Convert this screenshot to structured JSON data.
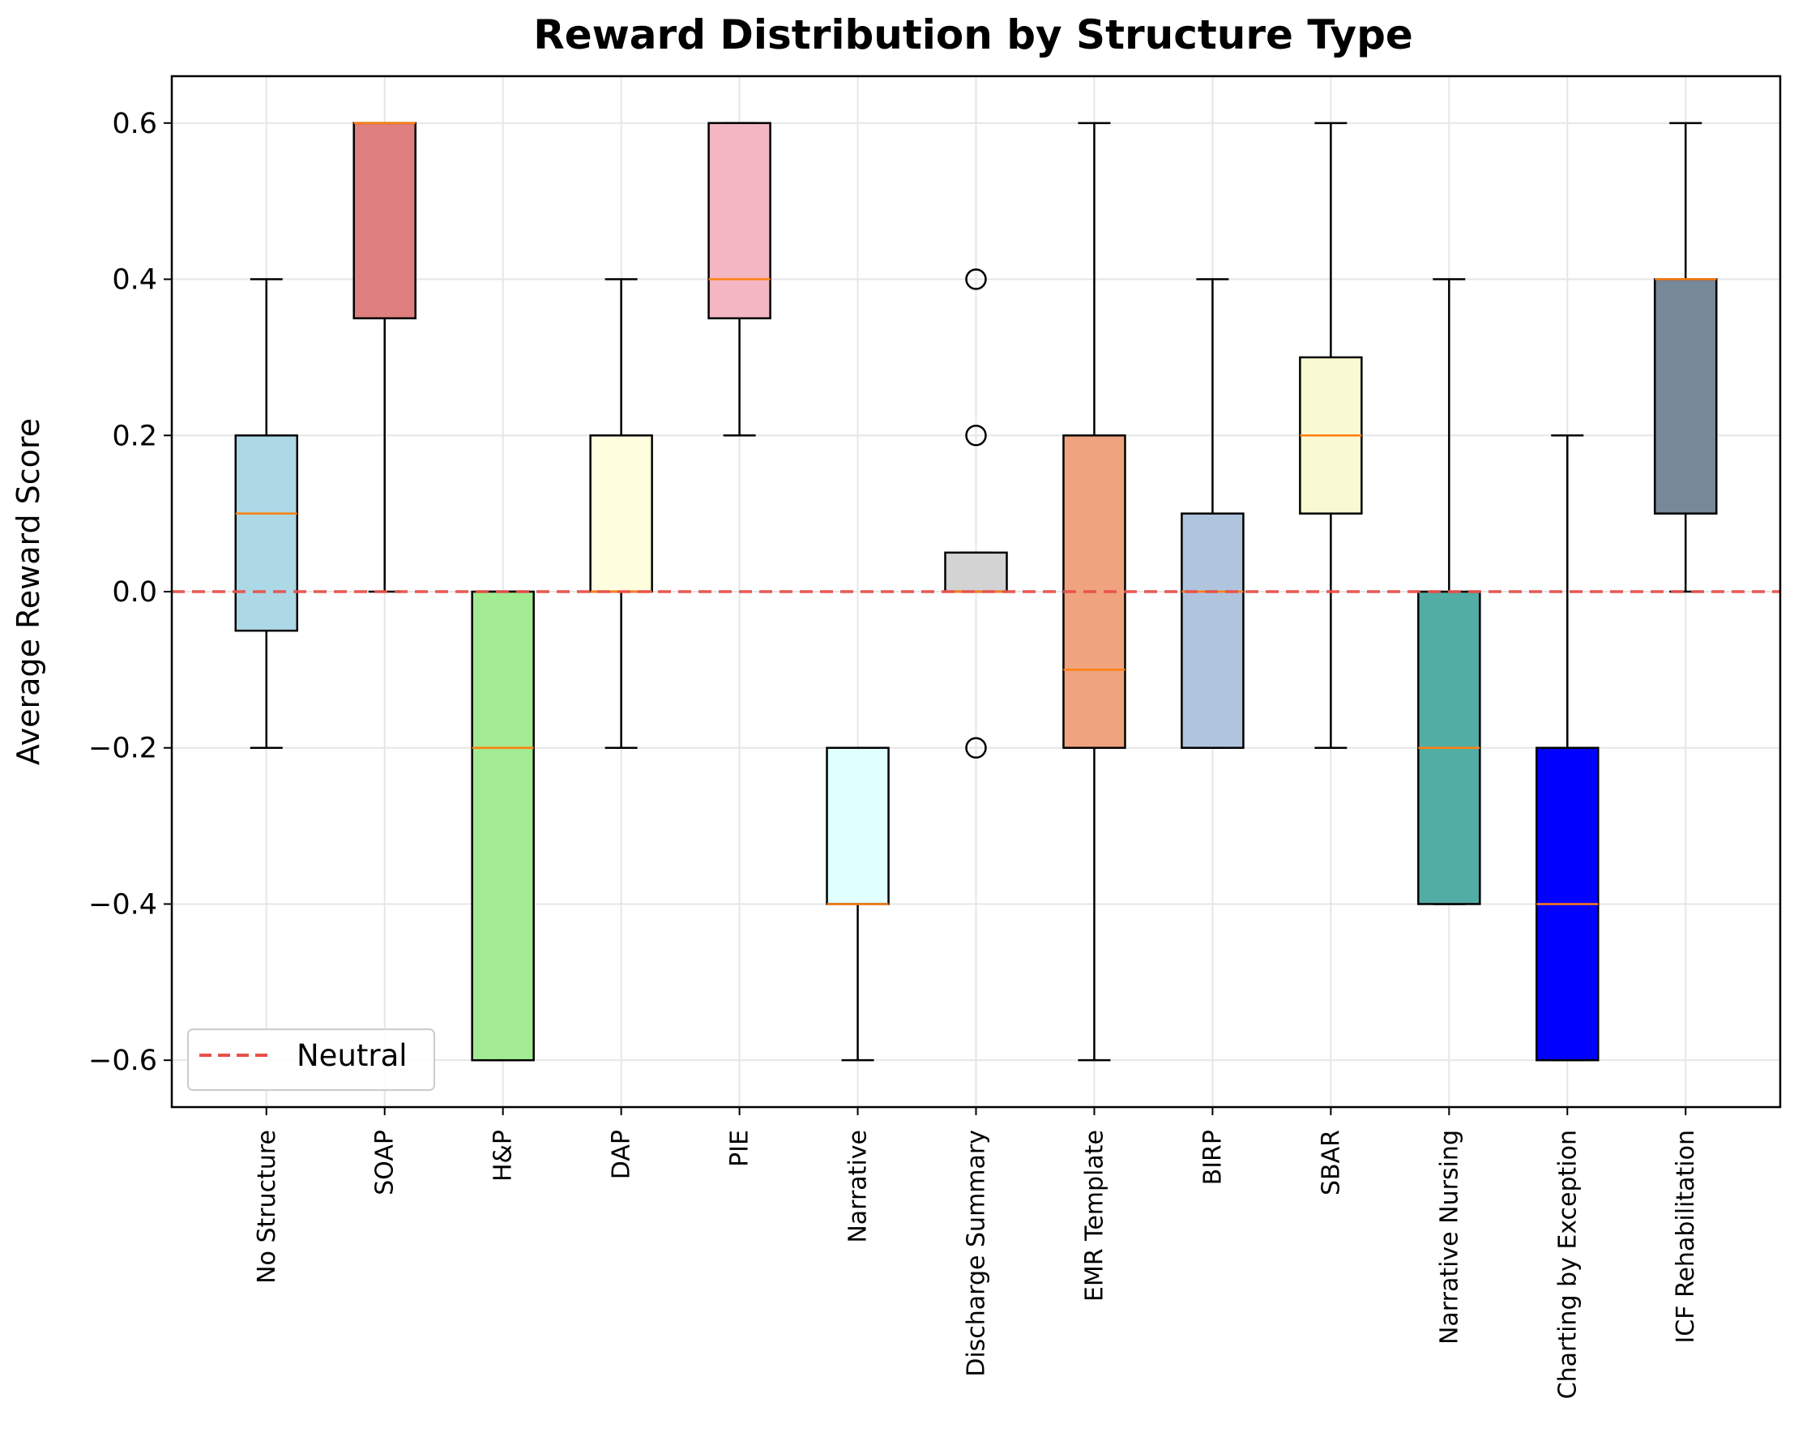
{
  "chart_data": {
    "type": "box",
    "title": "Reward Distribution by Structure Type",
    "xlabel": "",
    "ylabel": "Average Reward Score",
    "ylim": [
      -0.66,
      0.66
    ],
    "yticks": [
      -0.6,
      -0.4,
      -0.2,
      0.0,
      0.2,
      0.4,
      0.6
    ],
    "ytick_labels": [
      "−0.6",
      "−0.4",
      "−0.2",
      "0.0",
      "0.2",
      "0.4",
      "0.6"
    ],
    "grid": true,
    "legend": {
      "placement": "lower-left",
      "entries": [
        {
          "label": "Neutral",
          "style": "dashed",
          "color": "#e8504a"
        }
      ]
    },
    "reference_line": {
      "y": 0.0,
      "label": "Neutral",
      "color": "#e8504a",
      "style": "dashed"
    },
    "median_color": "#ff7f0e",
    "categories": [
      "No Structure",
      "SOAP",
      "H&P",
      "DAP",
      "PIE",
      "Narrative",
      "Discharge Summary",
      "EMR Template",
      "BIRP",
      "SBAR",
      "Narrative Nursing",
      "Charting by Exception",
      "ICF Rehabilitation"
    ],
    "boxes": [
      {
        "name": "No Structure",
        "whisker_low": -0.2,
        "q1": -0.05,
        "median": 0.1,
        "q3": 0.2,
        "whisker_high": 0.4,
        "fliers": [],
        "color": "#add8e6"
      },
      {
        "name": "SOAP",
        "whisker_low": 0.0,
        "q1": 0.35,
        "median": 0.6,
        "q3": 0.6,
        "whisker_high": 0.6,
        "fliers": [],
        "color": "#e07f7f"
      },
      {
        "name": "H&P",
        "whisker_low": -0.6,
        "q1": -0.6,
        "median": -0.2,
        "q3": 0.0,
        "whisker_high": 0.0,
        "fliers": [],
        "color": "#a3eb92"
      },
      {
        "name": "DAP",
        "whisker_low": -0.2,
        "q1": 0.0,
        "median": 0.0,
        "q3": 0.2,
        "whisker_high": 0.4,
        "fliers": [],
        "color": "#ffffe0"
      },
      {
        "name": "PIE",
        "whisker_low": 0.2,
        "q1": 0.35,
        "median": 0.4,
        "q3": 0.6,
        "whisker_high": 0.6,
        "fliers": [],
        "color": "#f4b6c2"
      },
      {
        "name": "Narrative",
        "whisker_low": -0.6,
        "q1": -0.4,
        "median": -0.4,
        "q3": -0.2,
        "whisker_high": -0.2,
        "fliers": [],
        "color": "#e0ffff"
      },
      {
        "name": "Discharge Summary",
        "whisker_low": 0.0,
        "q1": 0.0,
        "median": 0.0,
        "q3": 0.05,
        "whisker_high": 0.05,
        "fliers": [
          0.4,
          0.2,
          -0.2
        ],
        "color": "#d3d3d3"
      },
      {
        "name": "EMR Template",
        "whisker_low": -0.6,
        "q1": -0.2,
        "median": -0.1,
        "q3": 0.2,
        "whisker_high": 0.6,
        "fliers": [],
        "color": "#f0a37f"
      },
      {
        "name": "BIRP",
        "whisker_low": -0.2,
        "q1": -0.2,
        "median": 0.0,
        "q3": 0.1,
        "whisker_high": 0.4,
        "fliers": [],
        "color": "#b0c4de"
      },
      {
        "name": "SBAR",
        "whisker_low": -0.2,
        "q1": 0.1,
        "median": 0.2,
        "q3": 0.3,
        "whisker_high": 0.6,
        "fliers": [],
        "color": "#fafad2"
      },
      {
        "name": "Narrative Nursing",
        "whisker_low": -0.4,
        "q1": -0.4,
        "median": -0.2,
        "q3": 0.0,
        "whisker_high": 0.4,
        "fliers": [],
        "color": "#52ada5"
      },
      {
        "name": "Charting by Exception",
        "whisker_low": -0.6,
        "q1": -0.6,
        "median": -0.4,
        "q3": -0.2,
        "whisker_high": 0.2,
        "fliers": [],
        "color": "#0000ff"
      },
      {
        "name": "ICF Rehabilitation",
        "whisker_low": 0.0,
        "q1": 0.1,
        "median": 0.4,
        "q3": 0.4,
        "whisker_high": 0.6,
        "fliers": [],
        "color": "#778899"
      }
    ]
  }
}
